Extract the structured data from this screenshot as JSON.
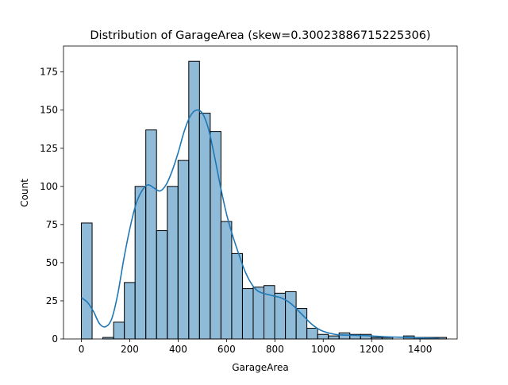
{
  "chart_data": {
    "type": "bar",
    "subtype": "histogram-with-kde",
    "title": "Distribution of GarageArea (skew=0.30023886715225306)",
    "xlabel": "GarageArea",
    "ylabel": "Count",
    "xlim": [
      -73.9,
      1553.9
    ],
    "ylim": [
      0,
      192
    ],
    "xticks": [
      0,
      200,
      400,
      600,
      800,
      1000,
      1200,
      1400
    ],
    "yticks": [
      0,
      25,
      50,
      75,
      100,
      125,
      150,
      175
    ],
    "bin_width": 44.4,
    "bins": [
      {
        "x0": 0.0,
        "x1": 44.4,
        "count": 76
      },
      {
        "x0": 44.4,
        "x1": 88.8,
        "count": 0
      },
      {
        "x0": 88.8,
        "x1": 133.2,
        "count": 1
      },
      {
        "x0": 133.2,
        "x1": 177.6,
        "count": 11
      },
      {
        "x0": 177.6,
        "x1": 222.0,
        "count": 37
      },
      {
        "x0": 222.0,
        "x1": 266.4,
        "count": 100
      },
      {
        "x0": 266.4,
        "x1": 310.8,
        "count": 137
      },
      {
        "x0": 310.8,
        "x1": 355.2,
        "count": 71
      },
      {
        "x0": 355.2,
        "x1": 399.6,
        "count": 100
      },
      {
        "x0": 399.6,
        "x1": 444.0,
        "count": 117
      },
      {
        "x0": 444.0,
        "x1": 488.4,
        "count": 182
      },
      {
        "x0": 488.4,
        "x1": 532.8,
        "count": 148
      },
      {
        "x0": 532.8,
        "x1": 577.2,
        "count": 136
      },
      {
        "x0": 577.2,
        "x1": 621.6,
        "count": 77
      },
      {
        "x0": 621.6,
        "x1": 666.0,
        "count": 56
      },
      {
        "x0": 666.0,
        "x1": 710.4,
        "count": 33
      },
      {
        "x0": 710.4,
        "x1": 754.8,
        "count": 34
      },
      {
        "x0": 754.8,
        "x1": 799.2,
        "count": 35
      },
      {
        "x0": 799.2,
        "x1": 843.6,
        "count": 30
      },
      {
        "x0": 843.6,
        "x1": 888.0,
        "count": 31
      },
      {
        "x0": 888.0,
        "x1": 932.4,
        "count": 20
      },
      {
        "x0": 932.4,
        "x1": 976.8,
        "count": 7
      },
      {
        "x0": 976.8,
        "x1": 1021.2,
        "count": 3
      },
      {
        "x0": 1021.2,
        "x1": 1065.6,
        "count": 2
      },
      {
        "x0": 1065.6,
        "x1": 1110.0,
        "count": 4
      },
      {
        "x0": 1110.0,
        "x1": 1154.4,
        "count": 3
      },
      {
        "x0": 1154.4,
        "x1": 1198.8,
        "count": 3
      },
      {
        "x0": 1198.8,
        "x1": 1243.2,
        "count": 1
      },
      {
        "x0": 1243.2,
        "x1": 1287.6,
        "count": 1
      },
      {
        "x0": 1287.6,
        "x1": 1332.0,
        "count": 0
      },
      {
        "x0": 1332.0,
        "x1": 1376.4,
        "count": 2
      },
      {
        "x0": 1376.4,
        "x1": 1420.8,
        "count": 1
      },
      {
        "x0": 1420.8,
        "x1": 1465.2,
        "count": 1
      },
      {
        "x0": 1465.2,
        "x1": 1509.6,
        "count": 1
      }
    ],
    "kde": {
      "x": [
        0,
        25,
        50,
        75,
        100,
        125,
        150,
        175,
        200,
        225,
        250,
        275,
        300,
        325,
        350,
        375,
        400,
        425,
        450,
        475,
        500,
        525,
        550,
        575,
        600,
        625,
        650,
        675,
        700,
        725,
        750,
        775,
        800,
        825,
        850,
        875,
        900,
        925,
        950,
        975,
        1000,
        1050,
        1100,
        1150,
        1200,
        1250,
        1300,
        1350,
        1400,
        1450,
        1480
      ],
      "y": [
        27,
        24,
        18,
        10,
        8,
        13,
        29,
        52,
        72,
        88,
        97,
        101,
        99,
        97,
        101,
        110,
        122,
        136,
        146,
        150,
        148,
        138,
        120,
        100,
        82,
        68,
        56,
        45,
        37,
        32,
        30,
        29,
        28,
        27,
        25,
        22,
        18,
        14,
        10,
        7,
        5,
        3,
        2.5,
        2.3,
        2,
        1.5,
        1.2,
        1,
        0.7,
        0.5,
        0.3
      ]
    },
    "bar_color": "#1f77b4",
    "bar_alpha": 0.5,
    "bar_edge_color": "#000000",
    "kde_color": "#1f77b4",
    "grid": false,
    "legend": "none"
  }
}
